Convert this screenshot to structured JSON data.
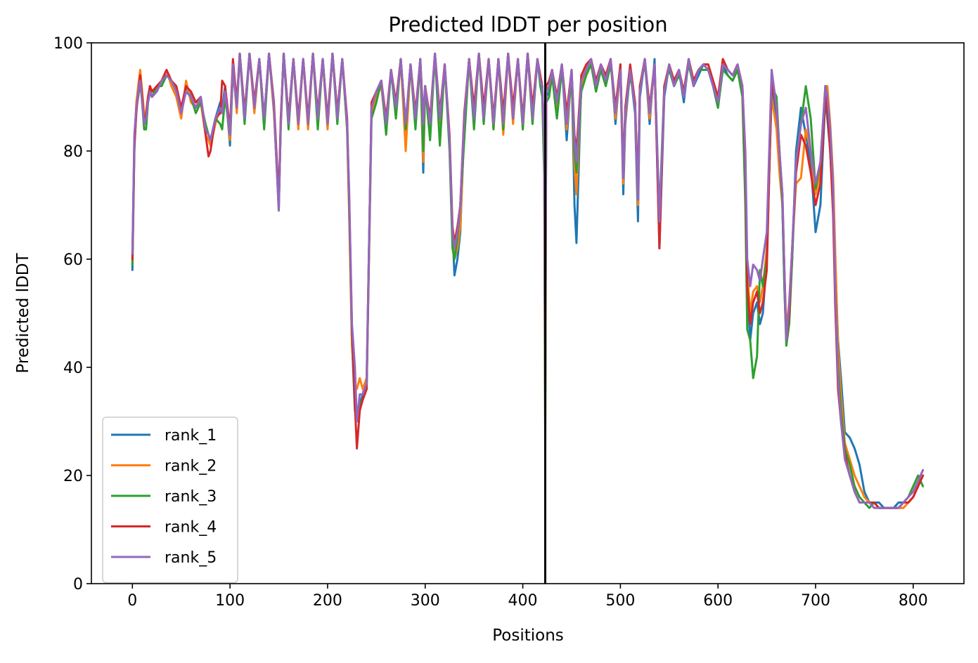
{
  "chart_data": {
    "type": "line",
    "title": "Predicted lDDT per position",
    "xlabel": "Positions",
    "ylabel": "Predicted lDDT",
    "xlim": [
      -42,
      852
    ],
    "ylim": [
      0,
      100
    ],
    "xticks": [
      0,
      100,
      200,
      300,
      400,
      500,
      600,
      700,
      800
    ],
    "yticks": [
      0,
      20,
      40,
      60,
      80,
      100
    ],
    "xtick_labels": [
      "0",
      "100",
      "200",
      "300",
      "400",
      "500",
      "600",
      "700",
      "800"
    ],
    "ytick_labels": [
      "0",
      "20",
      "40",
      "60",
      "80",
      "100"
    ],
    "grid": false,
    "legend_position": "lower-left",
    "chain_break": 423,
    "chain_break_color": "#000000",
    "x": [
      0,
      2,
      4,
      6,
      8,
      10,
      12,
      14,
      16,
      18,
      20,
      25,
      30,
      35,
      40,
      45,
      50,
      55,
      60,
      65,
      70,
      75,
      78,
      80,
      85,
      90,
      92,
      95,
      100,
      103,
      107,
      110,
      115,
      120,
      125,
      130,
      135,
      140,
      145,
      150,
      152,
      155,
      160,
      165,
      170,
      175,
      180,
      185,
      190,
      195,
      200,
      205,
      210,
      215,
      220,
      222,
      225,
      228,
      230,
      233,
      236,
      240,
      245,
      250,
      255,
      260,
      265,
      270,
      275,
      280,
      285,
      290,
      295,
      298,
      300,
      305,
      310,
      315,
      320,
      325,
      328,
      330,
      333,
      336,
      340,
      345,
      350,
      355,
      360,
      365,
      370,
      375,
      380,
      385,
      390,
      395,
      400,
      405,
      410,
      415,
      418,
      420,
      422,
      423,
      424,
      427,
      430,
      435,
      440,
      445,
      450,
      453,
      455,
      460,
      465,
      470,
      475,
      480,
      485,
      490,
      495,
      500,
      503,
      505,
      510,
      515,
      518,
      520,
      525,
      530,
      535,
      540,
      545,
      550,
      555,
      560,
      565,
      570,
      575,
      580,
      585,
      590,
      595,
      600,
      605,
      610,
      615,
      620,
      625,
      628,
      630,
      633,
      636,
      640,
      643,
      646,
      650,
      655,
      660,
      663,
      666,
      668,
      670,
      673,
      676,
      680,
      685,
      690,
      695,
      700,
      705,
      710,
      712,
      715,
      718,
      720,
      723,
      726,
      730,
      735,
      740,
      745,
      750,
      755,
      760,
      765,
      770,
      775,
      780,
      785,
      790,
      795,
      800,
      805,
      810
    ],
    "series": [
      {
        "name": "rank_1",
        "color": "#1f77b4",
        "values": [
          58,
          80,
          88,
          91,
          92,
          90,
          86,
          85,
          89,
          91,
          90,
          91,
          93,
          94,
          93,
          91,
          87,
          92,
          90,
          88,
          90,
          84,
          83,
          82,
          86,
          89,
          88,
          92,
          81,
          95,
          88,
          98,
          87,
          98,
          88,
          97,
          86,
          98,
          88,
          70,
          85,
          98,
          86,
          97,
          85,
          97,
          85,
          98,
          86,
          97,
          85,
          98,
          87,
          97,
          85,
          70,
          45,
          32,
          30,
          33,
          35,
          38,
          88,
          91,
          93,
          85,
          95,
          88,
          97,
          84,
          96,
          86,
          97,
          76,
          92,
          84,
          98,
          86,
          96,
          82,
          65,
          57,
          60,
          65,
          85,
          97,
          86,
          98,
          87,
          97,
          85,
          97,
          84,
          98,
          86,
          97,
          85,
          98,
          87,
          97,
          93,
          92,
          80,
          34,
          90,
          91,
          95,
          88,
          96,
          82,
          95,
          70,
          63,
          93,
          95,
          97,
          91,
          96,
          93,
          97,
          85,
          96,
          72,
          85,
          95,
          87,
          67,
          90,
          97,
          85,
          97,
          62,
          90,
          96,
          92,
          95,
          89,
          97,
          92,
          94,
          96,
          95,
          92,
          88,
          96,
          94,
          93,
          95,
          91,
          75,
          55,
          45,
          50,
          52,
          48,
          50,
          60,
          92,
          85,
          78,
          70,
          55,
          45,
          50,
          60,
          80,
          88,
          83,
          78,
          65,
          70,
          90,
          86,
          80,
          70,
          60,
          45,
          38,
          28,
          27,
          25,
          22,
          17,
          15,
          15,
          15,
          14,
          14,
          14,
          15,
          15,
          15,
          16,
          18,
          20
        ]
      },
      {
        "name": "rank_2",
        "color": "#ff7f0e",
        "values": [
          59,
          81,
          89,
          92,
          95,
          91,
          87,
          86,
          90,
          92,
          91,
          91,
          93,
          95,
          92,
          90,
          86,
          93,
          89,
          88,
          89,
          83,
          82,
          81,
          85,
          88,
          87,
          91,
          82,
          96,
          87,
          98,
          86,
          98,
          87,
          97,
          85,
          98,
          87,
          70,
          84,
          98,
          85,
          97,
          84,
          97,
          84,
          98,
          85,
          97,
          84,
          98,
          86,
          97,
          84,
          69,
          44,
          36,
          36,
          38,
          36,
          38,
          87,
          90,
          92,
          84,
          95,
          87,
          97,
          80,
          96,
          85,
          97,
          78,
          92,
          83,
          98,
          85,
          96,
          81,
          64,
          60,
          62,
          66,
          84,
          97,
          85,
          98,
          86,
          97,
          84,
          97,
          83,
          98,
          85,
          97,
          84,
          98,
          86,
          97,
          93,
          91,
          79,
          30,
          91,
          92,
          95,
          87,
          96,
          84,
          94,
          77,
          72,
          92,
          95,
          97,
          92,
          96,
          93,
          97,
          86,
          95,
          74,
          86,
          95,
          88,
          70,
          91,
          97,
          86,
          96,
          66,
          91,
          96,
          93,
          95,
          90,
          97,
          93,
          95,
          96,
          96,
          93,
          89,
          97,
          95,
          94,
          96,
          92,
          77,
          58,
          50,
          54,
          55,
          52,
          55,
          62,
          90,
          84,
          76,
          70,
          58,
          47,
          52,
          62,
          74,
          75,
          84,
          80,
          72,
          76,
          92,
          92,
          85,
          75,
          62,
          44,
          35,
          26,
          23,
          20,
          18,
          16,
          15,
          15,
          14,
          14,
          14,
          14,
          14,
          14,
          15,
          16,
          18,
          20
        ]
      },
      {
        "name": "rank_3",
        "color": "#2ca02c",
        "values": [
          59,
          82,
          88,
          90,
          93,
          89,
          84,
          84,
          89,
          91,
          90,
          92,
          92,
          94,
          93,
          91,
          88,
          91,
          90,
          87,
          89,
          85,
          83,
          82,
          86,
          85,
          84,
          90,
          83,
          96,
          88,
          98,
          85,
          98,
          88,
          97,
          84,
          98,
          88,
          69,
          85,
          98,
          84,
          97,
          85,
          97,
          85,
          98,
          84,
          97,
          85,
          98,
          85,
          97,
          84,
          71,
          46,
          34,
          30,
          33,
          34,
          36,
          86,
          89,
          93,
          83,
          95,
          86,
          97,
          84,
          96,
          84,
          97,
          80,
          92,
          82,
          98,
          81,
          96,
          80,
          62,
          60,
          64,
          70,
          82,
          97,
          84,
          98,
          85,
          97,
          84,
          97,
          84,
          98,
          86,
          97,
          84,
          98,
          85,
          97,
          92,
          90,
          75,
          24,
          89,
          90,
          94,
          86,
          95,
          86,
          93,
          80,
          76,
          91,
          94,
          96,
          91,
          95,
          92,
          96,
          88,
          95,
          76,
          87,
          94,
          89,
          72,
          92,
          96,
          88,
          96,
          68,
          92,
          95,
          92,
          94,
          91,
          96,
          92,
          95,
          95,
          95,
          92,
          88,
          95,
          94,
          93,
          95,
          90,
          70,
          47,
          45,
          38,
          42,
          58,
          55,
          60,
          92,
          90,
          80,
          70,
          55,
          44,
          48,
          60,
          78,
          85,
          92,
          86,
          73,
          78,
          92,
          89,
          80,
          70,
          55,
          40,
          32,
          25,
          22,
          18,
          16,
          15,
          14,
          15,
          14,
          14,
          14,
          14,
          14,
          15,
          16,
          18,
          20,
          18
        ]
      },
      {
        "name": "rank_4",
        "color": "#d62728",
        "values": [
          60,
          81,
          87,
          91,
          94,
          90,
          85,
          87,
          90,
          92,
          91,
          92,
          93,
          95,
          93,
          92,
          88,
          92,
          91,
          89,
          90,
          83,
          79,
          80,
          86,
          87,
          93,
          92,
          84,
          97,
          89,
          98,
          87,
          98,
          89,
          97,
          86,
          98,
          89,
          71,
          86,
          98,
          86,
          97,
          86,
          97,
          86,
          98,
          87,
          97,
          86,
          98,
          87,
          97,
          86,
          72,
          47,
          33,
          25,
          32,
          34,
          36,
          89,
          91,
          93,
          86,
          95,
          89,
          97,
          85,
          96,
          87,
          97,
          86,
          92,
          86,
          98,
          87,
          96,
          83,
          66,
          63,
          66,
          70,
          87,
          97,
          88,
          98,
          88,
          97,
          86,
          97,
          87,
          98,
          88,
          97,
          86,
          98,
          88,
          97,
          94,
          92,
          82,
          36,
          92,
          93,
          95,
          90,
          96,
          87,
          95,
          83,
          80,
          94,
          96,
          97,
          93,
          96,
          94,
          97,
          88,
          96,
          76,
          88,
          96,
          89,
          73,
          92,
          97,
          88,
          96,
          62,
          92,
          96,
          93,
          95,
          91,
          97,
          93,
          95,
          96,
          96,
          93,
          90,
          97,
          95,
          94,
          96,
          92,
          78,
          55,
          48,
          52,
          54,
          50,
          52,
          58,
          93,
          88,
          80,
          72,
          58,
          45,
          50,
          62,
          76,
          83,
          81,
          76,
          70,
          74,
          90,
          88,
          80,
          68,
          52,
          36,
          30,
          24,
          20,
          17,
          15,
          15,
          15,
          15,
          14,
          14,
          14,
          14,
          14,
          15,
          15,
          16,
          18,
          20
        ]
      },
      {
        "name": "rank_5",
        "color": "#9467bd",
        "values": [
          61,
          83,
          88,
          91,
          93,
          89,
          85,
          86,
          89,
          91,
          90,
          91,
          93,
          94,
          93,
          91,
          87,
          91,
          90,
          88,
          90,
          84,
          83,
          82,
          86,
          88,
          87,
          91,
          83,
          96,
          88,
          98,
          86,
          98,
          88,
          97,
          86,
          98,
          88,
          69,
          85,
          98,
          85,
          97,
          85,
          97,
          85,
          98,
          86,
          97,
          85,
          98,
          86,
          97,
          85,
          73,
          48,
          40,
          30,
          35,
          35,
          37,
          88,
          91,
          93,
          85,
          95,
          88,
          97,
          85,
          96,
          86,
          97,
          85,
          92,
          85,
          98,
          86,
          96,
          82,
          65,
          62,
          65,
          70,
          86,
          97,
          86,
          98,
          86,
          97,
          85,
          97,
          85,
          98,
          86,
          97,
          85,
          98,
          86,
          97,
          93,
          92,
          82,
          45,
          91,
          92,
          95,
          89,
          96,
          85,
          95,
          82,
          78,
          93,
          95,
          97,
          92,
          96,
          93,
          97,
          87,
          95,
          75,
          87,
          95,
          88,
          71,
          91,
          97,
          87,
          96,
          67,
          91,
          96,
          92,
          95,
          90,
          97,
          92,
          95,
          96,
          95,
          92,
          89,
          96,
          95,
          94,
          96,
          92,
          80,
          60,
          55,
          59,
          58,
          56,
          60,
          65,
          95,
          88,
          80,
          72,
          58,
          45,
          52,
          62,
          78,
          85,
          88,
          80,
          74,
          78,
          92,
          90,
          84,
          73,
          55,
          38,
          30,
          23,
          20,
          17,
          15,
          15,
          15,
          14,
          14,
          14,
          14,
          14,
          14,
          15,
          16,
          17,
          19,
          21
        ]
      }
    ]
  }
}
